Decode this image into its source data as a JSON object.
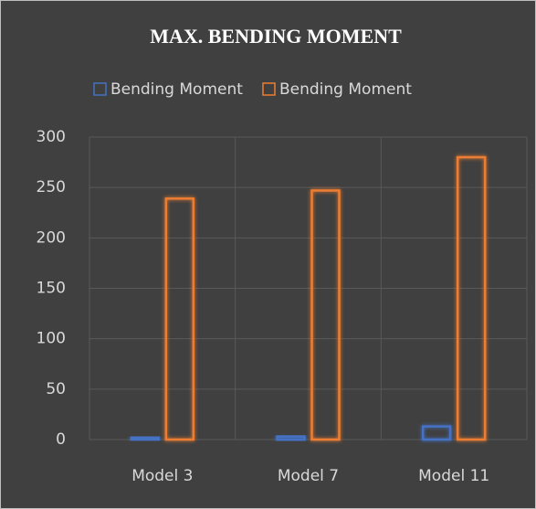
{
  "chart_data": {
    "type": "bar",
    "title": "MAX. BENDING MOMENT",
    "categories": [
      "Model 3",
      "Model 7",
      "Model 11"
    ],
    "series": [
      {
        "name": "Bending Moment",
        "color": "#4472c4",
        "values": [
          2,
          3,
          13
        ]
      },
      {
        "name": "Bending Moment",
        "color": "#ed7d31",
        "values": [
          239,
          247,
          280
        ]
      }
    ],
    "ylim": [
      0,
      300
    ],
    "yticks": [
      0,
      50,
      100,
      150,
      200,
      250,
      300
    ],
    "grid": true,
    "legend": "top"
  }
}
